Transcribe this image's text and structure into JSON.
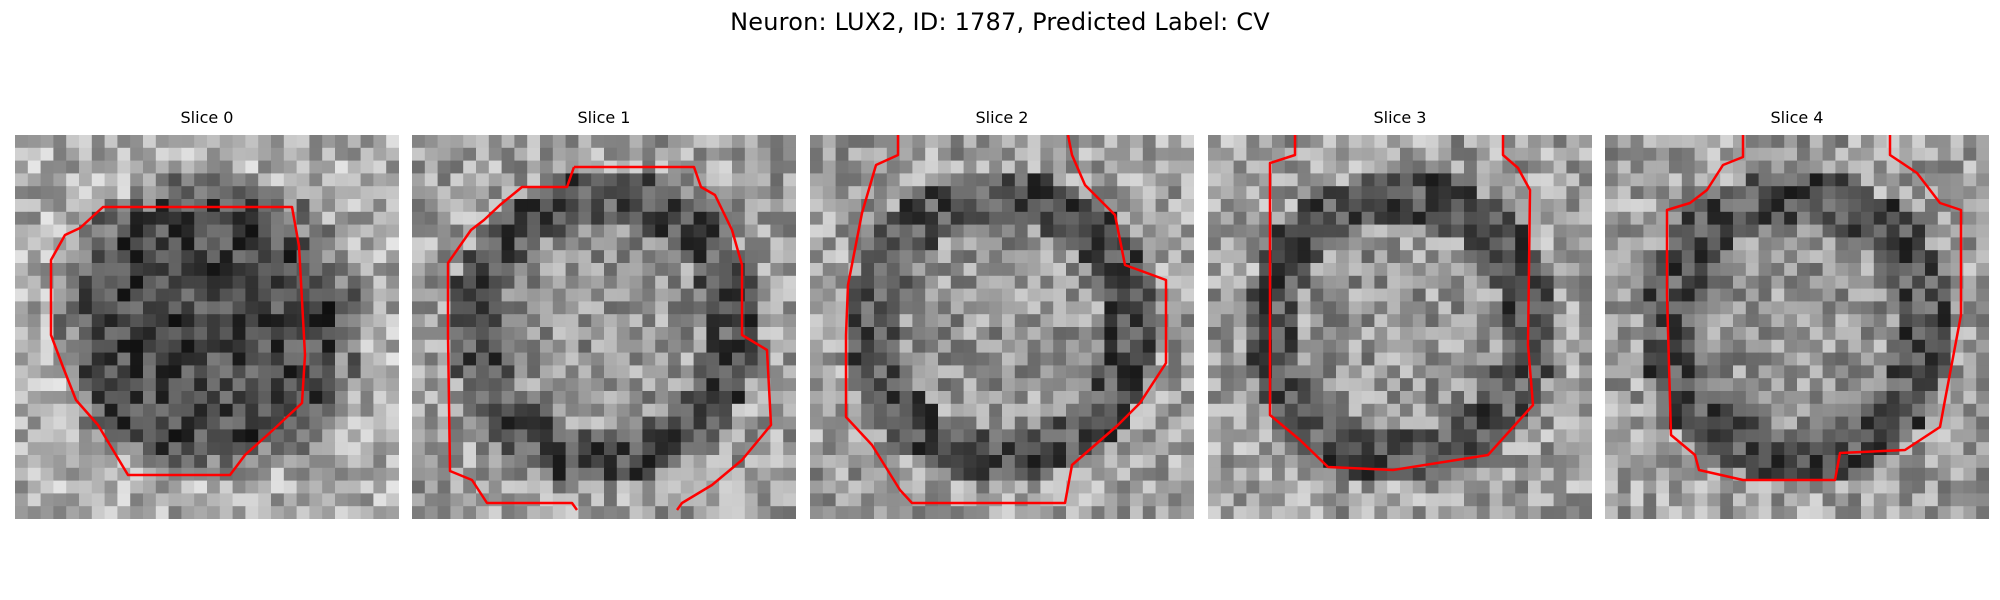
{
  "figure": {
    "title": "Neuron: LUX2, ID: 1787, Predicted Label: CV"
  },
  "panels": [
    {
      "title": "Slice 0",
      "contour_color": "#ff0000",
      "seed": 11
    },
    {
      "title": "Slice 1",
      "contour_color": "#ff0000",
      "seed": 23
    },
    {
      "title": "Slice 2",
      "contour_color": "#ff0000",
      "seed": 37
    },
    {
      "title": "Slice 3",
      "contour_color": "#ff0000",
      "seed": 41
    },
    {
      "title": "Slice 4",
      "contour_color": "#ff0000",
      "seed": 59
    }
  ]
}
